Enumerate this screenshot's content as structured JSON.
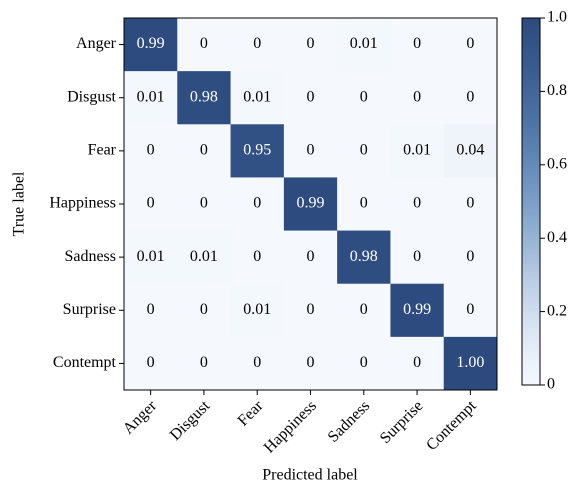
{
  "chart_data": {
    "type": "heatmap",
    "x_label": "Predicted label",
    "y_label": "True label",
    "x_categories": [
      "Anger",
      "Disgust",
      "Fear",
      "Happiness",
      "Sadness",
      "Surprise",
      "Contempt"
    ],
    "y_categories": [
      "Anger",
      "Disgust",
      "Fear",
      "Happiness",
      "Sadness",
      "Surprise",
      "Contempt"
    ],
    "values": [
      [
        0.99,
        0,
        0,
        0,
        0.01,
        0,
        0
      ],
      [
        0.01,
        0.98,
        0.01,
        0,
        0,
        0,
        0
      ],
      [
        0,
        0,
        0.95,
        0,
        0,
        0.01,
        0.04
      ],
      [
        0,
        0,
        0,
        0.99,
        0,
        0,
        0
      ],
      [
        0.01,
        0.01,
        0,
        0,
        0.98,
        0,
        0
      ],
      [
        0,
        0,
        0.01,
        0,
        0,
        0.99,
        0
      ],
      [
        0,
        0,
        0,
        0,
        0,
        0,
        1.0
      ]
    ],
    "value_labels": [
      [
        "0.99",
        "0",
        "0",
        "0",
        "0.01",
        "0",
        "0"
      ],
      [
        "0.01",
        "0.98",
        "0.01",
        "0",
        "0",
        "0",
        "0"
      ],
      [
        "0",
        "0",
        "0.95",
        "0",
        "0",
        "0.01",
        "0.04"
      ],
      [
        "0",
        "0",
        "0",
        "0.99",
        "0",
        "0",
        "0"
      ],
      [
        "0.01",
        "0.01",
        "0",
        "0",
        "0.98",
        "0",
        "0"
      ],
      [
        "0",
        "0",
        "0.01",
        "0",
        "0",
        "0.99",
        "0"
      ],
      [
        "0",
        "0",
        "0",
        "0",
        "0",
        "0",
        "1.00"
      ]
    ],
    "colormap": [
      "#f5f9fd",
      "#dce7f3",
      "#b9cde4",
      "#8eadd0",
      "#6a90bd",
      "#4e74a6",
      "#3a5d91",
      "#2c4a7e"
    ],
    "clim": [
      0,
      1
    ],
    "cticks": [
      0,
      0.2,
      0.4,
      0.6,
      0.8,
      {
        "value": 1,
        "label": "1.0"
      }
    ]
  }
}
